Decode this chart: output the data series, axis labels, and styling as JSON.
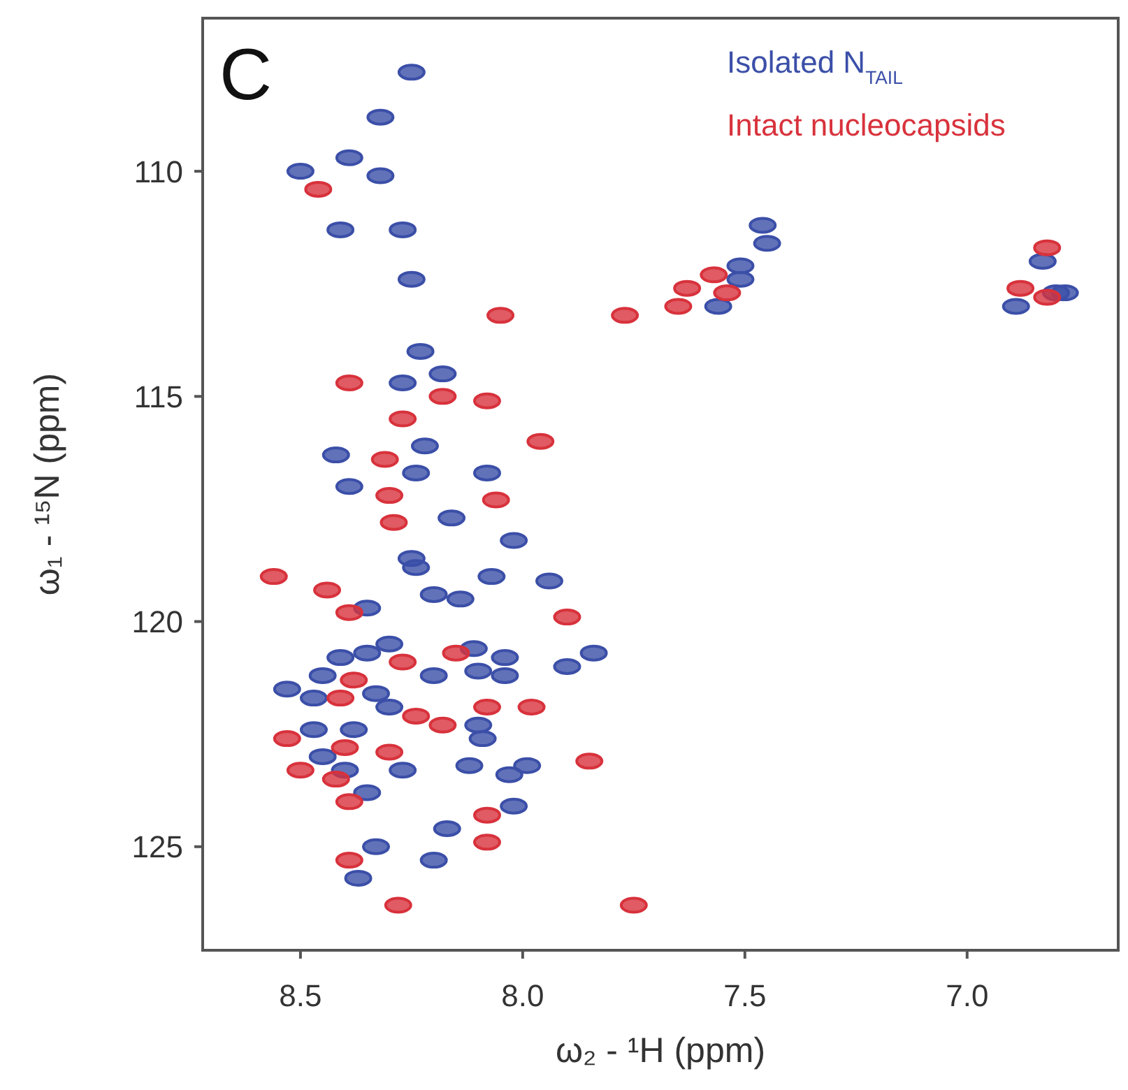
{
  "chart_data": {
    "type": "scatter",
    "xlabel": "ω₂ - ¹H  (ppm)",
    "ylabel": "ω₁ - ¹⁵N (ppm)",
    "annotations": [
      "C"
    ],
    "xlim": [
      8.72,
      6.66
    ],
    "ylim": [
      127.3,
      106.6
    ],
    "xticks": [
      8.5,
      {
        "value": 8,
        "label": "8.0"
      },
      7.5,
      {
        "value": 7,
        "label": "7.0"
      }
    ],
    "yticks": [
      110,
      115,
      120,
      125
    ],
    "grid": false,
    "legend": "top right",
    "marker": "circle",
    "series": [
      {
        "name": "Isolated N$_{TAIL}$",
        "color": "#3b4fa8",
        "x": [
          8.25,
          8.32,
          8.39,
          8.5,
          8.32,
          8.41,
          8.27,
          8.25,
          8.23,
          8.27,
          8.18,
          8.22,
          8.42,
          8.24,
          8.08,
          8.39,
          8.16,
          8.02,
          8.25,
          8.24,
          8.07,
          7.94,
          8.2,
          8.14,
          8.35,
          8.3,
          7.84,
          7.9,
          8.11,
          8.41,
          8.35,
          8.04,
          8.04,
          8.1,
          8.2,
          8.45,
          8.53,
          8.47,
          8.33,
          8.3,
          8.1,
          8.38,
          8.47,
          8.09,
          8.45,
          8.4,
          8.27,
          8.12,
          8.03,
          7.99,
          8.35,
          8.02,
          8.17,
          8.33,
          8.2,
          8.37,
          7.46,
          7.45,
          7.51,
          7.51,
          7.56,
          6.83,
          6.8,
          6.89,
          6.78
        ],
        "values": [
          107.8,
          108.8,
          109.7,
          110.0,
          110.1,
          111.3,
          111.3,
          112.4,
          114.0,
          114.7,
          114.5,
          116.1,
          116.3,
          116.7,
          116.7,
          117.0,
          117.7,
          118.2,
          118.6,
          118.8,
          119.0,
          119.1,
          119.4,
          119.5,
          119.7,
          120.5,
          120.7,
          121.0,
          120.6,
          120.8,
          120.7,
          120.8,
          121.2,
          121.1,
          121.2,
          121.2,
          121.5,
          121.7,
          121.6,
          121.9,
          122.3,
          122.4,
          122.4,
          122.6,
          123.0,
          123.3,
          123.3,
          123.2,
          123.4,
          123.2,
          123.8,
          124.1,
          124.6,
          125.0,
          125.3,
          125.7,
          111.2,
          111.6,
          112.1,
          112.4,
          113.0,
          112.0,
          112.7,
          113.0,
          112.7
        ]
      },
      {
        "name": "Intact nucleocapsids",
        "color": "#d8323c",
        "x": [
          8.46,
          8.05,
          7.77,
          8.39,
          8.18,
          8.08,
          8.27,
          7.96,
          8.31,
          8.3,
          8.06,
          8.29,
          8.56,
          8.44,
          8.39,
          7.9,
          8.15,
          8.27,
          8.38,
          8.41,
          8.24,
          8.08,
          7.98,
          8.18,
          8.53,
          8.4,
          8.3,
          8.5,
          7.85,
          8.42,
          8.39,
          8.08,
          8.08,
          8.39,
          8.28,
          7.75,
          7.57,
          7.63,
          7.54,
          7.65,
          6.82,
          6.88,
          6.82
        ],
        "values": [
          110.4,
          113.2,
          113.2,
          114.7,
          115.0,
          115.1,
          115.5,
          116.0,
          116.4,
          117.2,
          117.3,
          117.8,
          119.0,
          119.3,
          119.8,
          119.9,
          120.7,
          120.9,
          121.3,
          121.7,
          122.1,
          121.9,
          121.9,
          122.3,
          122.6,
          122.8,
          122.9,
          123.3,
          123.1,
          123.5,
          124.0,
          124.3,
          124.9,
          125.3,
          126.3,
          126.3,
          112.3,
          112.6,
          112.7,
          113.0,
          111.7,
          112.6,
          112.8
        ]
      }
    ]
  }
}
